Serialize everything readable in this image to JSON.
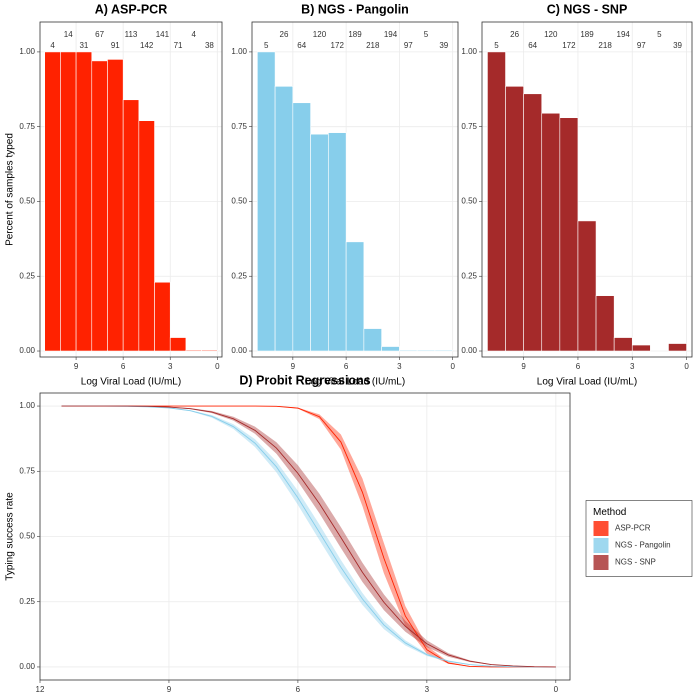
{
  "chart_data": [
    {
      "type": "histogram",
      "title": "A) ASP-PCR",
      "xlabel": "Log Viral Load (IU/mL)",
      "ylabel": "Percent of samples typed",
      "color": "#ff2200",
      "bins": [
        11,
        10,
        9,
        8,
        7,
        6,
        5,
        4,
        3,
        2,
        1,
        0
      ],
      "values": [
        1.0,
        1.0,
        1.0,
        0.97,
        0.975,
        0.84,
        0.77,
        0.23,
        0.045,
        0.003,
        0.003
      ],
      "counts": [
        4,
        14,
        31,
        67,
        91,
        113,
        142,
        141,
        71,
        4,
        38
      ],
      "xlim": [
        11.3,
        -0.3
      ],
      "xticks": [
        9,
        6,
        3,
        0
      ],
      "ylim": [
        -0.02,
        1.1
      ],
      "yticks": [
        {
          "value": 0,
          "label": "0.00"
        },
        {
          "value": 0.25,
          "label": "0.25"
        },
        {
          "value": 0.5,
          "label": "0.50"
        },
        {
          "value": 0.75,
          "label": "0.75"
        },
        {
          "value": 1,
          "label": "1.00"
        }
      ],
      "grid": true
    },
    {
      "type": "histogram",
      "title": "B) NGS - Pangolin",
      "xlabel": "Log Viral Load (IU/mL)",
      "color": "#87ceeb",
      "bins": [
        11,
        10,
        9,
        8,
        7,
        6,
        5,
        4,
        3,
        2,
        1,
        0
      ],
      "values": [
        1.0,
        0.885,
        0.83,
        0.725,
        0.73,
        0.365,
        0.075,
        0.015,
        0.003,
        0.003,
        0.003
      ],
      "counts": [
        5,
        26,
        64,
        120,
        172,
        189,
        218,
        194,
        97,
        5,
        39
      ],
      "xlim": [
        11.3,
        -0.3
      ],
      "xticks": [
        9,
        6,
        3,
        0
      ],
      "ylim": [
        -0.02,
        1.1
      ],
      "yticks": [
        {
          "value": 0,
          "label": "0.00"
        },
        {
          "value": 0.25,
          "label": "0.25"
        },
        {
          "value": 0.5,
          "label": "0.50"
        },
        {
          "value": 0.75,
          "label": "0.75"
        },
        {
          "value": 1,
          "label": "1.00"
        }
      ],
      "grid": true
    },
    {
      "type": "histogram",
      "title": "C) NGS - SNP",
      "xlabel": "Log Viral Load (IU/mL)",
      "color": "#a52a2a",
      "bins": [
        11,
        10,
        9,
        8,
        7,
        6,
        5,
        4,
        3,
        2,
        1,
        0
      ],
      "values": [
        1.0,
        0.885,
        0.86,
        0.795,
        0.78,
        0.435,
        0.185,
        0.045,
        0.02,
        0.0,
        0.025
      ],
      "counts": [
        5,
        26,
        64,
        120,
        172,
        189,
        218,
        194,
        97,
        5,
        39
      ],
      "xlim": [
        11.3,
        -0.3
      ],
      "xticks": [
        9,
        6,
        3,
        0
      ],
      "ylim": [
        -0.02,
        1.1
      ],
      "yticks": [
        {
          "value": 0,
          "label": "0.00"
        },
        {
          "value": 0.25,
          "label": "0.25"
        },
        {
          "value": 0.5,
          "label": "0.50"
        },
        {
          "value": 0.75,
          "label": "0.75"
        },
        {
          "value": 1,
          "label": "1.00"
        }
      ],
      "grid": true
    },
    {
      "type": "line",
      "title": "D) Probit Regressions",
      "xlabel": "Log Viral Load (IU/mL)",
      "ylabel": "Typing success rate",
      "legend_title": "Method",
      "legend": "right",
      "x": [
        11.5,
        11,
        10.5,
        10,
        9.5,
        9,
        8.5,
        8,
        7.5,
        7,
        6.5,
        6,
        5.5,
        5,
        4.5,
        4,
        3.5,
        3,
        2.5,
        2,
        1.5,
        1,
        0.5,
        0
      ],
      "series": [
        {
          "name": "ASP-PCR",
          "color": "#ff2200",
          "values": [
            1,
            1,
            1,
            1,
            1,
            1,
            1,
            1,
            1,
            1,
            0.999,
            0.992,
            0.959,
            0.862,
            0.67,
            0.417,
            0.195,
            0.066,
            0.015,
            0.002,
            0,
            0,
            0,
            0
          ],
          "lower": [
            1,
            1,
            1,
            1,
            1,
            1,
            1,
            1,
            1,
            1,
            0.999,
            0.99,
            0.95,
            0.833,
            0.617,
            0.359,
            0.157,
            0.051,
            0.012,
            0.002,
            0,
            0,
            0,
            0
          ],
          "upper": [
            1,
            1,
            1,
            1,
            1,
            1,
            1,
            1,
            1,
            1,
            1,
            0.994,
            0.968,
            0.891,
            0.723,
            0.475,
            0.233,
            0.081,
            0.019,
            0.003,
            0,
            0,
            0,
            0
          ]
        },
        {
          "name": "NGS - Pangolin",
          "color": "#87ceeb",
          "values": [
            1,
            1,
            1,
            0.999,
            0.997,
            0.993,
            0.982,
            0.96,
            0.921,
            0.858,
            0.767,
            0.648,
            0.516,
            0.382,
            0.261,
            0.161,
            0.092,
            0.047,
            0.022,
            0.009,
            0.003,
            0.001,
            0,
            0
          ],
          "lower": [
            1,
            1,
            1,
            0.999,
            0.997,
            0.992,
            0.98,
            0.955,
            0.912,
            0.843,
            0.746,
            0.621,
            0.486,
            0.354,
            0.238,
            0.145,
            0.082,
            0.042,
            0.019,
            0.008,
            0.003,
            0.001,
            0,
            0
          ],
          "upper": [
            1,
            1,
            1,
            0.999,
            0.997,
            0.994,
            0.984,
            0.965,
            0.93,
            0.873,
            0.788,
            0.675,
            0.546,
            0.41,
            0.284,
            0.177,
            0.102,
            0.052,
            0.025,
            0.01,
            0.003,
            0.001,
            0,
            0
          ]
        },
        {
          "name": "NGS - SNP",
          "color": "#a52a2a",
          "values": [
            1,
            1,
            1,
            1,
            0.999,
            0.996,
            0.99,
            0.977,
            0.951,
            0.907,
            0.839,
            0.742,
            0.626,
            0.496,
            0.363,
            0.248,
            0.156,
            0.089,
            0.046,
            0.022,
            0.009,
            0.004,
            0.001,
            0
          ],
          "lower": [
            1,
            1,
            1,
            1,
            0.999,
            0.995,
            0.988,
            0.973,
            0.944,
            0.894,
            0.817,
            0.711,
            0.589,
            0.456,
            0.326,
            0.218,
            0.135,
            0.076,
            0.039,
            0.019,
            0.008,
            0.003,
            0.001,
            0
          ],
          "upper": [
            1,
            1,
            1,
            1,
            0.999,
            0.997,
            0.992,
            0.981,
            0.959,
            0.921,
            0.861,
            0.773,
            0.664,
            0.536,
            0.4,
            0.278,
            0.177,
            0.102,
            0.053,
            0.025,
            0.01,
            0.004,
            0.001,
            0
          ]
        }
      ],
      "xlim": [
        12,
        -0.33
      ],
      "xticks": [
        12,
        9,
        6,
        3,
        0
      ],
      "ylim": [
        -0.05,
        1.05
      ],
      "yticks": [
        {
          "value": 0,
          "label": "0.00"
        },
        {
          "value": 0.25,
          "label": "0.25"
        },
        {
          "value": 0.5,
          "label": "0.50"
        },
        {
          "value": 0.75,
          "label": "0.75"
        },
        {
          "value": 1,
          "label": "1.00"
        }
      ],
      "grid": true
    }
  ]
}
